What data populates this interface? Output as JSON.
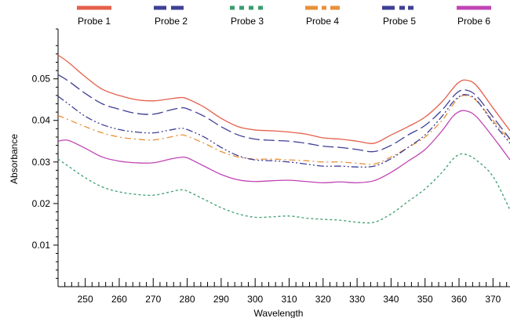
{
  "chart_data": {
    "type": "line",
    "xlabel": "Wavelength",
    "ylabel": "Absorbance",
    "xlim": [
      242,
      375
    ],
    "ylim": [
      0,
      0.062
    ],
    "x_ticks": [
      250,
      260,
      270,
      280,
      290,
      300,
      310,
      320,
      330,
      340,
      350,
      360,
      370
    ],
    "y_ticks": [
      0.01,
      0.02,
      0.03,
      0.04,
      0.05
    ],
    "x_tick_labels": [
      "250",
      "260",
      "270",
      "280",
      "290",
      "300",
      "310",
      "320",
      "330",
      "340",
      "350",
      "360",
      "370"
    ],
    "y_tick_labels": [
      "0.01",
      "0.02",
      "0.03",
      "0.04",
      "0.05"
    ],
    "grid": false,
    "legend_position": "top",
    "x": [
      242,
      245,
      250,
      255,
      260,
      265,
      270,
      275,
      278,
      280,
      285,
      290,
      295,
      300,
      305,
      310,
      315,
      320,
      325,
      330,
      335,
      340,
      345,
      350,
      355,
      358,
      360,
      362,
      365,
      370,
      375
    ],
    "series": [
      {
        "name": "Probe 1",
        "color": "#e4604c",
        "style": "solid",
        "values": [
          0.0557,
          0.054,
          0.0505,
          0.0475,
          0.046,
          0.045,
          0.0447,
          0.0452,
          0.0455,
          0.0452,
          0.0432,
          0.0405,
          0.0385,
          0.0377,
          0.0375,
          0.0372,
          0.0367,
          0.0358,
          0.0355,
          0.035,
          0.0345,
          0.0365,
          0.0385,
          0.0408,
          0.0445,
          0.0475,
          0.0492,
          0.0497,
          0.0485,
          0.043,
          0.0375
        ]
      },
      {
        "name": "Probe 2",
        "color": "#3e3f94",
        "style": "longdash",
        "values": [
          0.051,
          0.0495,
          0.0465,
          0.044,
          0.0427,
          0.0417,
          0.0415,
          0.0425,
          0.043,
          0.0428,
          0.041,
          0.0385,
          0.0365,
          0.0355,
          0.0352,
          0.035,
          0.0345,
          0.0338,
          0.0335,
          0.033,
          0.0325,
          0.034,
          0.0365,
          0.0388,
          0.0425,
          0.0455,
          0.047,
          0.0473,
          0.046,
          0.0408,
          0.0355
        ]
      },
      {
        "name": "Probe 3",
        "color": "#3a9e6e",
        "style": "dotted",
        "values": [
          0.0307,
          0.029,
          0.0262,
          0.024,
          0.0228,
          0.0222,
          0.022,
          0.0228,
          0.0233,
          0.023,
          0.021,
          0.019,
          0.0175,
          0.0167,
          0.0168,
          0.017,
          0.0165,
          0.0162,
          0.016,
          0.0155,
          0.0155,
          0.0175,
          0.0205,
          0.0235,
          0.0275,
          0.0305,
          0.0318,
          0.0318,
          0.0305,
          0.0265,
          0.0185
        ]
      },
      {
        "name": "Probe 4",
        "color": "#e8913a",
        "style": "dashdot",
        "values": [
          0.0412,
          0.0402,
          0.0385,
          0.037,
          0.036,
          0.0355,
          0.0353,
          0.036,
          0.0365,
          0.0362,
          0.0345,
          0.0325,
          0.0312,
          0.0307,
          0.0307,
          0.0305,
          0.0303,
          0.03,
          0.03,
          0.0297,
          0.0295,
          0.0312,
          0.0335,
          0.036,
          0.04,
          0.0435,
          0.0455,
          0.046,
          0.0448,
          0.04,
          0.035
        ]
      },
      {
        "name": "Probe 5",
        "color": "#3e3f94",
        "style": "dashdotdot",
        "values": [
          0.0458,
          0.044,
          0.041,
          0.039,
          0.0378,
          0.0372,
          0.037,
          0.0377,
          0.0381,
          0.0378,
          0.036,
          0.0335,
          0.0315,
          0.0305,
          0.0303,
          0.03,
          0.0295,
          0.029,
          0.029,
          0.0288,
          0.029,
          0.0308,
          0.0335,
          0.0365,
          0.041,
          0.0442,
          0.0457,
          0.0462,
          0.045,
          0.0395,
          0.0345
        ]
      },
      {
        "name": "Probe 6",
        "color": "#c044b4",
        "style": "solid",
        "values": [
          0.035,
          0.0352,
          0.0333,
          0.0312,
          0.0302,
          0.0298,
          0.0298,
          0.0307,
          0.0311,
          0.031,
          0.029,
          0.027,
          0.0257,
          0.0253,
          0.0255,
          0.0256,
          0.0253,
          0.025,
          0.0252,
          0.025,
          0.0255,
          0.0275,
          0.0302,
          0.033,
          0.0375,
          0.0408,
          0.0421,
          0.0423,
          0.041,
          0.036,
          0.0305
        ]
      }
    ]
  }
}
